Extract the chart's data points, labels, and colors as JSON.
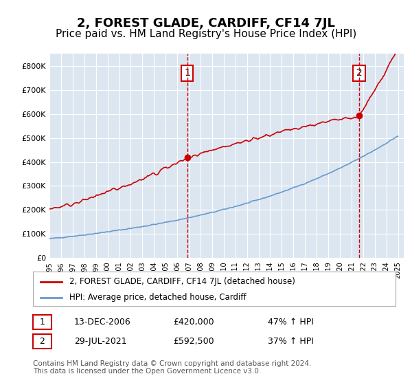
{
  "title": "2, FOREST GLADE, CARDIFF, CF14 7JL",
  "subtitle": "Price paid vs. HM Land Registry's House Price Index (HPI)",
  "title_fontsize": 13,
  "subtitle_fontsize": 11,
  "bg_color": "#ffffff",
  "plot_bg_color": "#dce6f1",
  "grid_color": "#ffffff",
  "sale1_date_idx": 12,
  "sale1_price": 420000,
  "sale1_label": "1",
  "sale2_date_idx": 27,
  "sale2_price": 592500,
  "sale2_label": "2",
  "red_line_color": "#cc0000",
  "blue_line_color": "#6699cc",
  "marker_color": "#cc0000",
  "dashed_line_color": "#cc0000",
  "legend1": "2, FOREST GLADE, CARDIFF, CF14 7JL (detached house)",
  "legend2": "HPI: Average price, detached house, Cardiff",
  "table_row1": [
    "1",
    "13-DEC-2006",
    "£420,000",
    "47% ↑ HPI"
  ],
  "table_row2": [
    "2",
    "29-JUL-2021",
    "£592,500",
    "37% ↑ HPI"
  ],
  "footnote": "Contains HM Land Registry data © Crown copyright and database right 2024.\nThis data is licensed under the Open Government Licence v3.0.",
  "ylim": [
    0,
    850000
  ],
  "yticks": [
    0,
    100000,
    200000,
    300000,
    400000,
    500000,
    600000,
    700000,
    800000
  ],
  "start_year": 1995,
  "end_year": 2025
}
